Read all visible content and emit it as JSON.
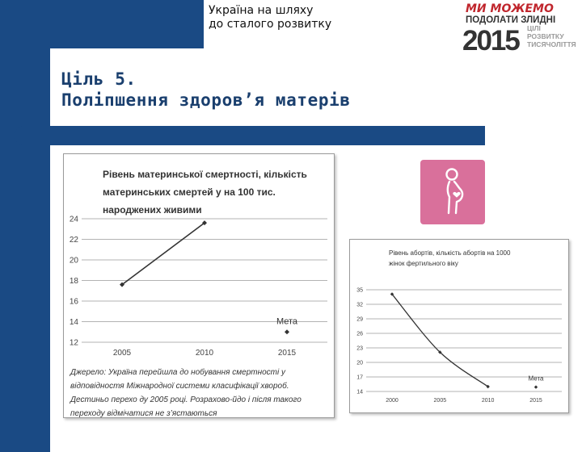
{
  "header": {
    "org_line1": "Україна на шляху",
    "org_line2": "до сталого розвитку"
  },
  "logo": {
    "line1": "МИ МОЖЕМО",
    "line2": "ПОДОЛАТИ ЗЛИДНІ",
    "year": "2015",
    "sub1": "ЦІЛІ",
    "sub2": "РОЗВИТКУ",
    "sub3": "ТИСЯЧОЛІТТЯ",
    "colors": {
      "red": "#c0262d",
      "dark": "#333333",
      "grey": "#9a9a9a"
    }
  },
  "slide": {
    "title_line1": "Ціль 5.",
    "title_line2": "Поліпшення здоров’я матерів",
    "accent_color": "#1a4a84"
  },
  "icon": {
    "name": "pregnant-woman-icon",
    "tile_color": "#d9709b"
  },
  "chart_data": [
    {
      "type": "line",
      "title": "Рівень материнської смертності, кількість материнських смертей у на 100 тис. народжених живими",
      "categories": [
        "2005",
        "2010",
        "2015"
      ],
      "series": [
        {
          "values": [
            17.6,
            23.6,
            null
          ],
          "color": "#333333"
        }
      ],
      "target": {
        "label": "Мета",
        "category": "2015",
        "value": 13
      },
      "ylim": [
        12,
        24
      ],
      "yticks": [
        "12",
        "14",
        "16",
        "18",
        "20",
        "22",
        "24"
      ],
      "grid": true,
      "source_note": "Джерело: Україна перейшла до нобування смертності у відповідностя Міжнародної системи класифікації хвороб. Дестиньо перехо ду 2005 році. Розрахово-йдо і після такого переходу відмічатися не з’ястаються"
    },
    {
      "type": "line",
      "title": "Рівень абортів, кількість абортів на 1000 жінок фертильного віку",
      "categories": [
        "2000",
        "2005",
        "2010",
        "2015"
      ],
      "series": [
        {
          "values": [
            34.1,
            22.1,
            15.0,
            null
          ],
          "color": "#333333"
        }
      ],
      "target": {
        "label": "Мета",
        "category": "2015",
        "value": 14.9
      },
      "ylim": [
        14,
        35
      ],
      "yticks": [
        "14",
        "17",
        "20",
        "23",
        "26",
        "29",
        "32",
        "35"
      ],
      "grid": true
    }
  ]
}
